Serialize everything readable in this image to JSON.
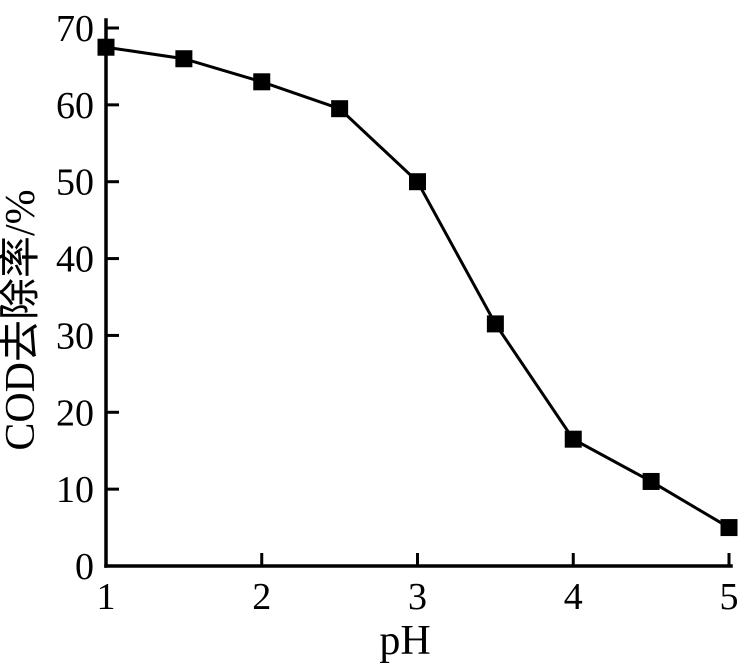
{
  "figure": {
    "background": "#ffffff",
    "ink_color": "#000000"
  },
  "chart_data": {
    "type": "line",
    "title": "",
    "xlabel": "pH",
    "ylabel": "COD去除率/%",
    "x": [
      1,
      1.5,
      2,
      2.5,
      3,
      3.5,
      4,
      4.5,
      5
    ],
    "y": [
      67.5,
      66,
      63,
      59.5,
      50,
      31.5,
      16.5,
      11,
      5
    ],
    "xlim": [
      1,
      5
    ],
    "ylim": [
      0,
      70
    ],
    "x_ticks": [
      "1",
      "2",
      "3",
      "4",
      "5"
    ],
    "y_ticks": [
      "0",
      "10",
      "20",
      "30",
      "40",
      "50",
      "60",
      "70"
    ],
    "grid": false,
    "legend": "none",
    "marker": "filled-square",
    "line_color": "#000000",
    "spines": [
      "left",
      "bottom"
    ]
  }
}
